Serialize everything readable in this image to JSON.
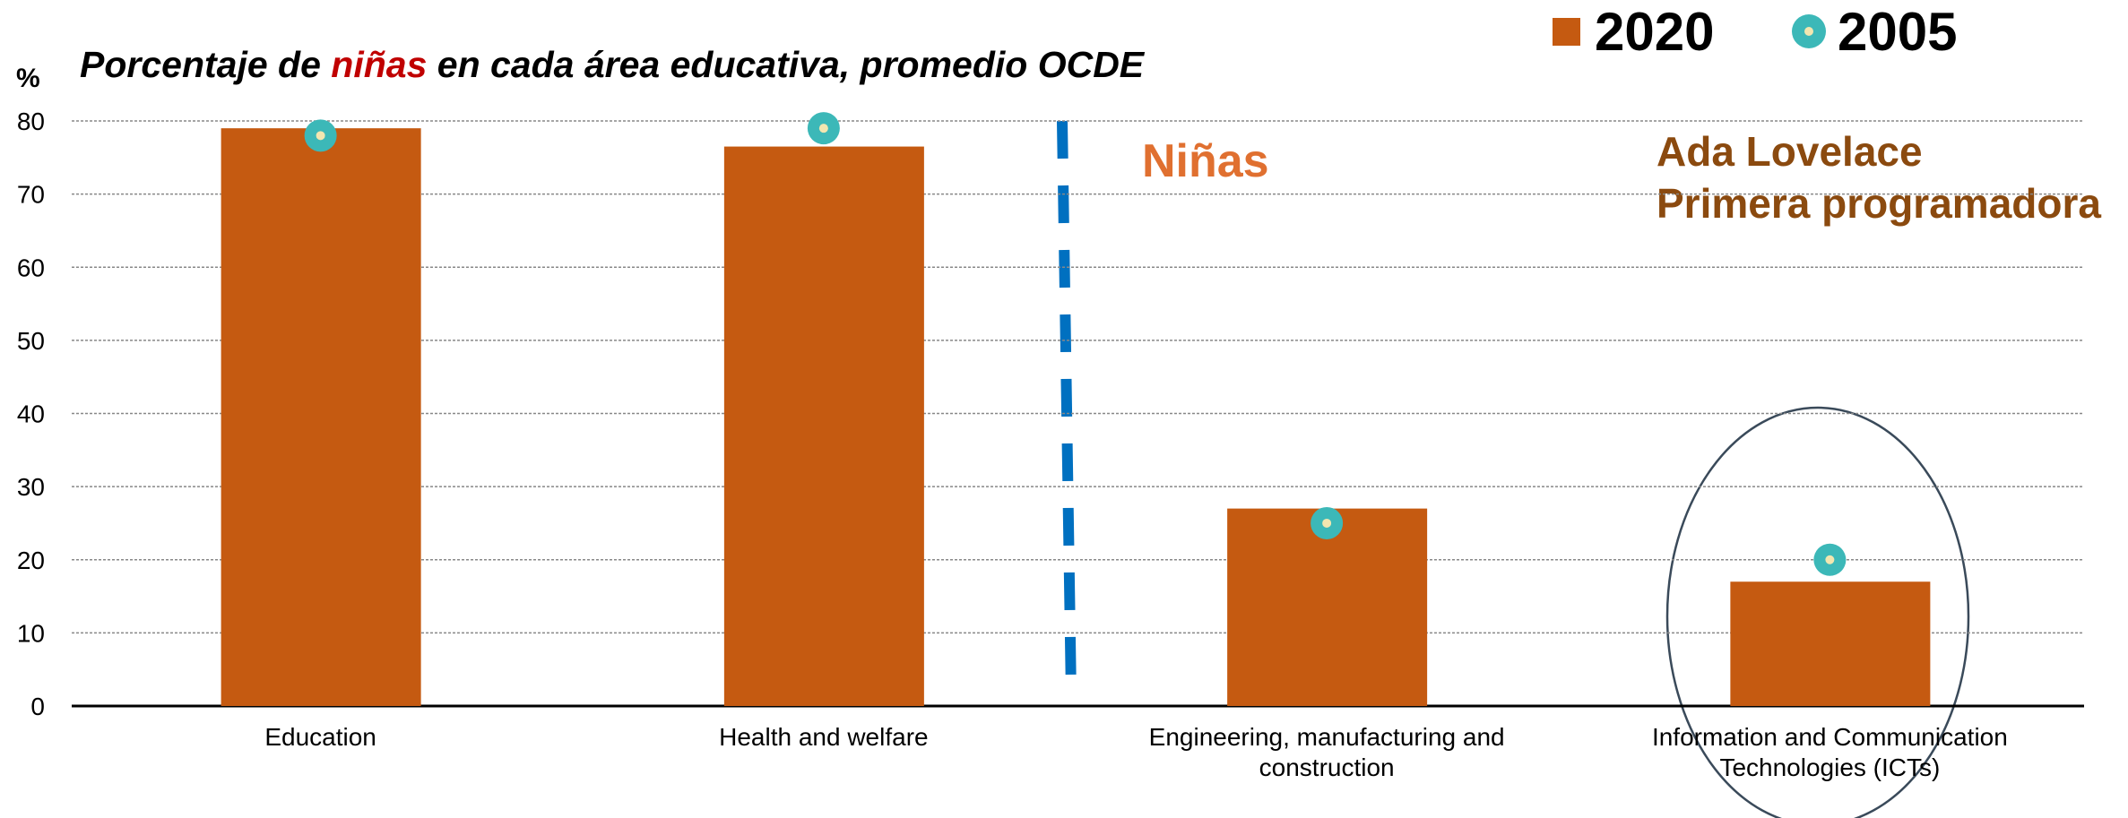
{
  "chart_data": {
    "type": "bar",
    "title_parts": [
      "Porcentaje de ",
      "niñas",
      " en cada área educativa, promedio OCDE"
    ],
    "y_label": "%",
    "categories": [
      "Education",
      "Health and welfare",
      "Engineering, manufacturing and construction",
      "Information and Communication Technologies (ICTs)"
    ],
    "series": [
      {
        "name": "2020",
        "color": "#c55a11",
        "values": [
          79,
          76.5,
          27,
          17
        ]
      },
      {
        "name": "2005",
        "color": "#3cb8b8",
        "values": [
          78,
          79,
          25,
          20
        ]
      }
    ],
    "ylim": [
      0,
      80
    ],
    "yticks": [
      0,
      10,
      20,
      30,
      40,
      50,
      60,
      70,
      80
    ],
    "grid": true,
    "annotations": [
      "Niñas",
      "Ada Lovelace",
      "Primera programadora"
    ]
  }
}
